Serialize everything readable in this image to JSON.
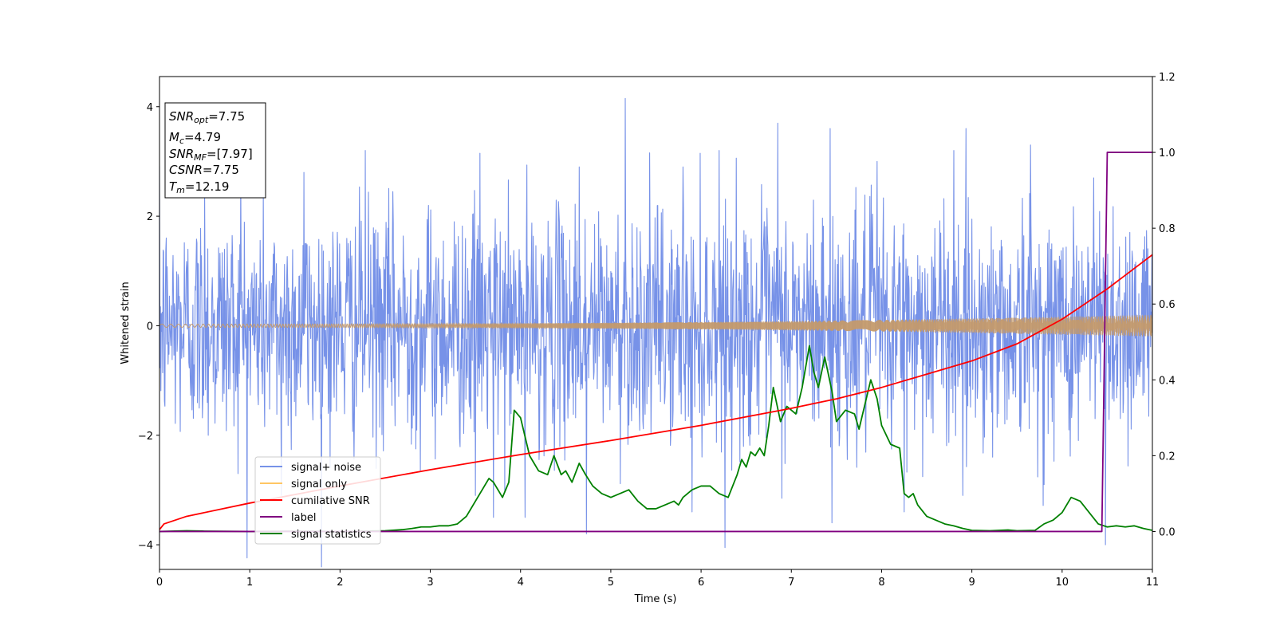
{
  "chart_data": {
    "type": "line",
    "xlabel": "Time (s)",
    "ylabel": "Whitened strain",
    "xlim": [
      0,
      11
    ],
    "ylim_left": [
      -4.45,
      4.55
    ],
    "ylim_right": [
      -0.1,
      1.2
    ],
    "x_ticks": [
      "0",
      "1",
      "2",
      "3",
      "4",
      "5",
      "6",
      "7",
      "8",
      "9",
      "10",
      "11"
    ],
    "y_left_ticks": [
      "−4",
      "−2",
      "0",
      "2",
      "4"
    ],
    "y_right_ticks": [
      "0.0",
      "0.2",
      "0.4",
      "0.6",
      "0.8",
      "1.0",
      "1.2"
    ],
    "grid": false,
    "legend_position": "lower-left",
    "info_box": {
      "snr_opt": {
        "sym": "SNR",
        "sub": "opt",
        "value": "=7.75"
      },
      "mc": {
        "sym": "M",
        "sub": "c",
        "value": "=4.79"
      },
      "snr_mf": {
        "sym": "SNR",
        "sub": "MF",
        "value": "=[7.97]"
      },
      "csnr": {
        "sym": "CSNR",
        "sub": "",
        "value": "=7.75"
      },
      "tm": {
        "sym": "T",
        "sub": "m",
        "value": "=12.19"
      }
    },
    "series": [
      {
        "name": "signal+ noise",
        "axis": "left",
        "color": "#7792e8",
        "kind": "noise-band",
        "sample_rate_hz": 200,
        "std": 1.0,
        "envelope_peaks": [
          [
            0.5,
            2.4
          ],
          [
            0.9,
            2.7
          ],
          [
            1.6,
            2.8
          ],
          [
            2.28,
            3.2
          ],
          [
            3.55,
            3.15
          ],
          [
            4.65,
            2.9
          ],
          [
            5.16,
            4.15
          ],
          [
            5.8,
            2.9
          ],
          [
            6.2,
            3.2
          ],
          [
            6.85,
            3.7
          ],
          [
            7.43,
            3.6
          ],
          [
            7.95,
            3.0
          ],
          [
            8.8,
            3.2
          ],
          [
            9.65,
            3.3
          ],
          [
            10.35,
            2.7
          ],
          [
            1.35,
            -3.1
          ],
          [
            3.5,
            -3.1
          ],
          [
            3.7,
            -3.5
          ],
          [
            4.05,
            -3.5
          ],
          [
            4.73,
            -3.8
          ],
          [
            5.9,
            -3.4
          ],
          [
            7.45,
            -3.6
          ],
          [
            8.25,
            -3.4
          ],
          [
            8.9,
            -3.1
          ],
          [
            10.48,
            -4.0
          ]
        ]
      },
      {
        "name": "signal only",
        "axis": "left",
        "color": "#ffc663",
        "kind": "chirp",
        "amplitude_start": 0.03,
        "amplitude_end": 0.2
      },
      {
        "name": "cumilative SNR",
        "axis": "right",
        "color": "#ff0000",
        "x": [
          0,
          0.05,
          0.3,
          1,
          2,
          3,
          4,
          5,
          6,
          7,
          7.5,
          8,
          9,
          9.5,
          10,
          10.5,
          11
        ],
        "y": [
          0.005,
          0.02,
          0.04,
          0.075,
          0.12,
          0.163,
          0.203,
          0.24,
          0.28,
          0.325,
          0.35,
          0.38,
          0.45,
          0.495,
          0.56,
          0.64,
          0.73
        ]
      },
      {
        "name": "label",
        "axis": "right",
        "color": "#800080",
        "x": [
          0,
          10.44,
          10.5,
          11
        ],
        "y": [
          0,
          0,
          1.0,
          1.0
        ]
      },
      {
        "name": "signal statistics",
        "axis": "right",
        "color": "#008000",
        "x": [
          0,
          0.3,
          0.5,
          1,
          1.5,
          2,
          2.5,
          2.7,
          2.8,
          2.9,
          3.0,
          3.1,
          3.2,
          3.3,
          3.4,
          3.5,
          3.6,
          3.65,
          3.7,
          3.8,
          3.87,
          3.93,
          4.0,
          4.1,
          4.2,
          4.3,
          4.37,
          4.45,
          4.5,
          4.57,
          4.65,
          4.72,
          4.8,
          4.9,
          5.0,
          5.1,
          5.2,
          5.3,
          5.4,
          5.5,
          5.6,
          5.7,
          5.75,
          5.8,
          5.9,
          6.0,
          6.05,
          6.1,
          6.2,
          6.3,
          6.4,
          6.45,
          6.5,
          6.55,
          6.6,
          6.65,
          6.7,
          6.75,
          6.8,
          6.88,
          6.95,
          7.0,
          7.05,
          7.12,
          7.2,
          7.25,
          7.3,
          7.37,
          7.45,
          7.5,
          7.6,
          7.7,
          7.75,
          7.8,
          7.88,
          7.95,
          8.0,
          8.1,
          8.2,
          8.25,
          8.3,
          8.35,
          8.4,
          8.5,
          8.6,
          8.7,
          8.8,
          8.9,
          9.0,
          9.2,
          9.4,
          9.5,
          9.7,
          9.8,
          9.9,
          10.0,
          10.1,
          10.2,
          10.3,
          10.4,
          10.5,
          10.6,
          10.7,
          10.8,
          10.9,
          11.0
        ],
        "y": [
          0.0,
          0.002,
          0.001,
          0.0,
          0.001,
          0.0,
          0.002,
          0.005,
          0.008,
          0.012,
          0.012,
          0.015,
          0.015,
          0.02,
          0.04,
          0.08,
          0.12,
          0.14,
          0.13,
          0.09,
          0.13,
          0.32,
          0.3,
          0.2,
          0.16,
          0.15,
          0.2,
          0.15,
          0.16,
          0.13,
          0.18,
          0.15,
          0.12,
          0.1,
          0.09,
          0.1,
          0.11,
          0.08,
          0.06,
          0.06,
          0.07,
          0.08,
          0.07,
          0.09,
          0.11,
          0.12,
          0.12,
          0.12,
          0.1,
          0.09,
          0.15,
          0.19,
          0.17,
          0.21,
          0.2,
          0.22,
          0.2,
          0.28,
          0.38,
          0.29,
          0.33,
          0.32,
          0.31,
          0.38,
          0.49,
          0.42,
          0.38,
          0.46,
          0.37,
          0.29,
          0.32,
          0.31,
          0.27,
          0.32,
          0.4,
          0.35,
          0.28,
          0.23,
          0.22,
          0.1,
          0.09,
          0.1,
          0.07,
          0.04,
          0.03,
          0.02,
          0.015,
          0.008,
          0.003,
          0.002,
          0.004,
          0.002,
          0.003,
          0.02,
          0.03,
          0.05,
          0.09,
          0.08,
          0.05,
          0.02,
          0.012,
          0.015,
          0.012,
          0.015,
          0.008,
          0.003
        ]
      }
    ]
  }
}
